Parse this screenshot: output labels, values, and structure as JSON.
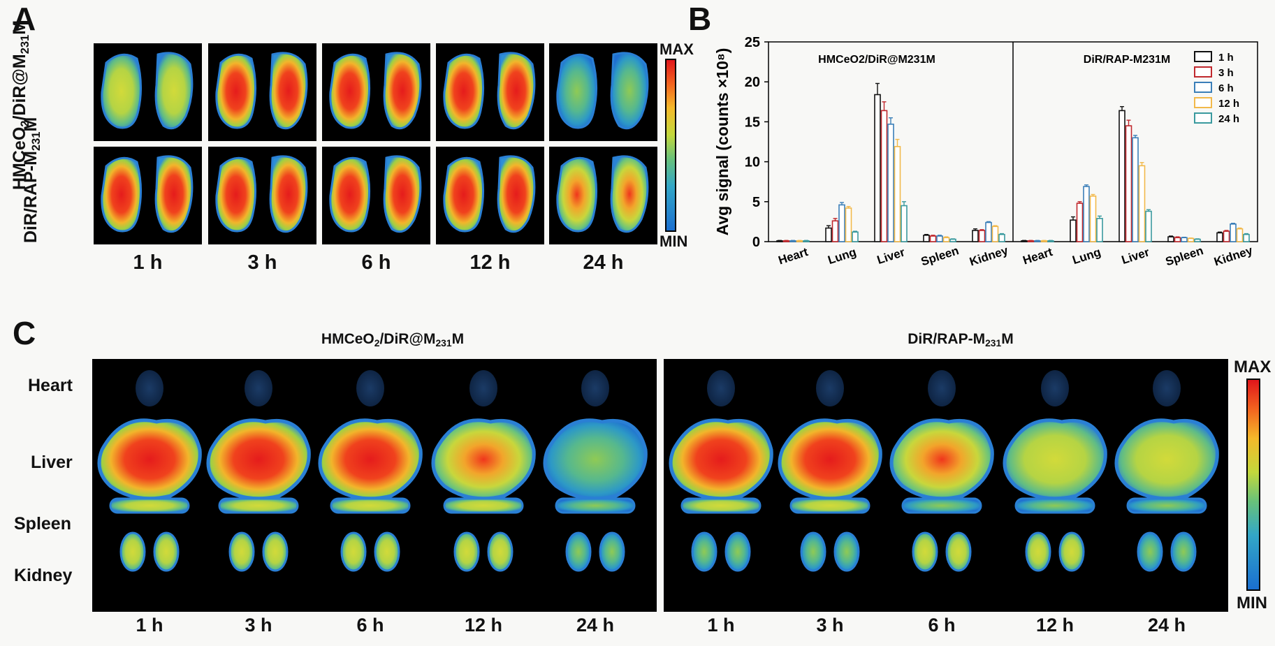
{
  "panel_labels": {
    "a": "A",
    "b": "B",
    "c": "C"
  },
  "panelA": {
    "row_labels": [
      "HMCeO2/DiR@M231M",
      "DiR/RAP-M231M"
    ],
    "times": [
      "1 h",
      "3 h",
      "6 h",
      "12 h",
      "24 h"
    ],
    "colorbar": {
      "max": "MAX",
      "min": "MIN"
    }
  },
  "panelC": {
    "titles": [
      "HMCeO2/DiR@M231M",
      "DiR/RAP-M231M"
    ],
    "organs": [
      "Heart",
      "Liver",
      "Spleen",
      "Kidney"
    ],
    "times": [
      "1 h",
      "3 h",
      "6 h",
      "12 h",
      "24 h"
    ],
    "colorbar": {
      "max": "MAX",
      "min": "MIN"
    }
  },
  "colors": {
    "1 h": "#111111",
    "3 h": "#c0282d",
    "6 h": "#3b7fb8",
    "12 h": "#f2b94a",
    "24 h": "#3a9a9e"
  },
  "chart_data": {
    "type": "bar",
    "ylabel": "Avg signal (counts ×10⁸)",
    "ylim": [
      0,
      25
    ],
    "yticks": [
      0,
      5,
      10,
      15,
      20,
      25
    ],
    "categories": [
      "Heart",
      "Lung",
      "Liver",
      "Spleen",
      "Kidney"
    ],
    "legend": [
      "1 h",
      "3 h",
      "6 h",
      "12 h",
      "24 h"
    ],
    "groups": [
      {
        "title": "HMCeO2/DiR@M231M",
        "series": [
          {
            "name": "1 h",
            "values": [
              0.1,
              1.7,
              18.4,
              0.8,
              1.4
            ],
            "errors": [
              0.05,
              0.3,
              1.4,
              0.1,
              0.2
            ]
          },
          {
            "name": "3 h",
            "values": [
              0.1,
              2.6,
              16.4,
              0.7,
              1.4
            ],
            "errors": [
              0.05,
              0.3,
              1.1,
              0.1,
              0.1
            ]
          },
          {
            "name": "6 h",
            "values": [
              0.1,
              4.6,
              14.7,
              0.7,
              2.4
            ],
            "errors": [
              0.05,
              0.3,
              0.8,
              0.1,
              0.1
            ]
          },
          {
            "name": "12 h",
            "values": [
              0.1,
              4.2,
              11.9,
              0.5,
              1.9
            ],
            "errors": [
              0.05,
              0.2,
              0.9,
              0.1,
              0.1
            ]
          },
          {
            "name": "24 h",
            "values": [
              0.1,
              1.2,
              4.5,
              0.3,
              0.9
            ],
            "errors": [
              0.05,
              0.1,
              0.5,
              0.05,
              0.1
            ]
          }
        ]
      },
      {
        "title": "DiR/RAP-M231M",
        "series": [
          {
            "name": "1 h",
            "values": [
              0.1,
              2.7,
              16.4,
              0.6,
              1.1
            ],
            "errors": [
              0.05,
              0.4,
              0.5,
              0.1,
              0.1
            ]
          },
          {
            "name": "3 h",
            "values": [
              0.1,
              4.8,
              14.5,
              0.5,
              1.3
            ],
            "errors": [
              0.05,
              0.2,
              0.7,
              0.1,
              0.1
            ]
          },
          {
            "name": "6 h",
            "values": [
              0.1,
              6.9,
              13.0,
              0.5,
              2.2
            ],
            "errors": [
              0.05,
              0.2,
              0.3,
              0.05,
              0.1
            ]
          },
          {
            "name": "12 h",
            "values": [
              0.1,
              5.7,
              9.5,
              0.4,
              1.6
            ],
            "errors": [
              0.05,
              0.2,
              0.4,
              0.05,
              0.1
            ]
          },
          {
            "name": "24 h",
            "values": [
              0.1,
              2.9,
              3.8,
              0.3,
              0.9
            ],
            "errors": [
              0.05,
              0.3,
              0.2,
              0.05,
              0.1
            ]
          }
        ]
      }
    ]
  }
}
